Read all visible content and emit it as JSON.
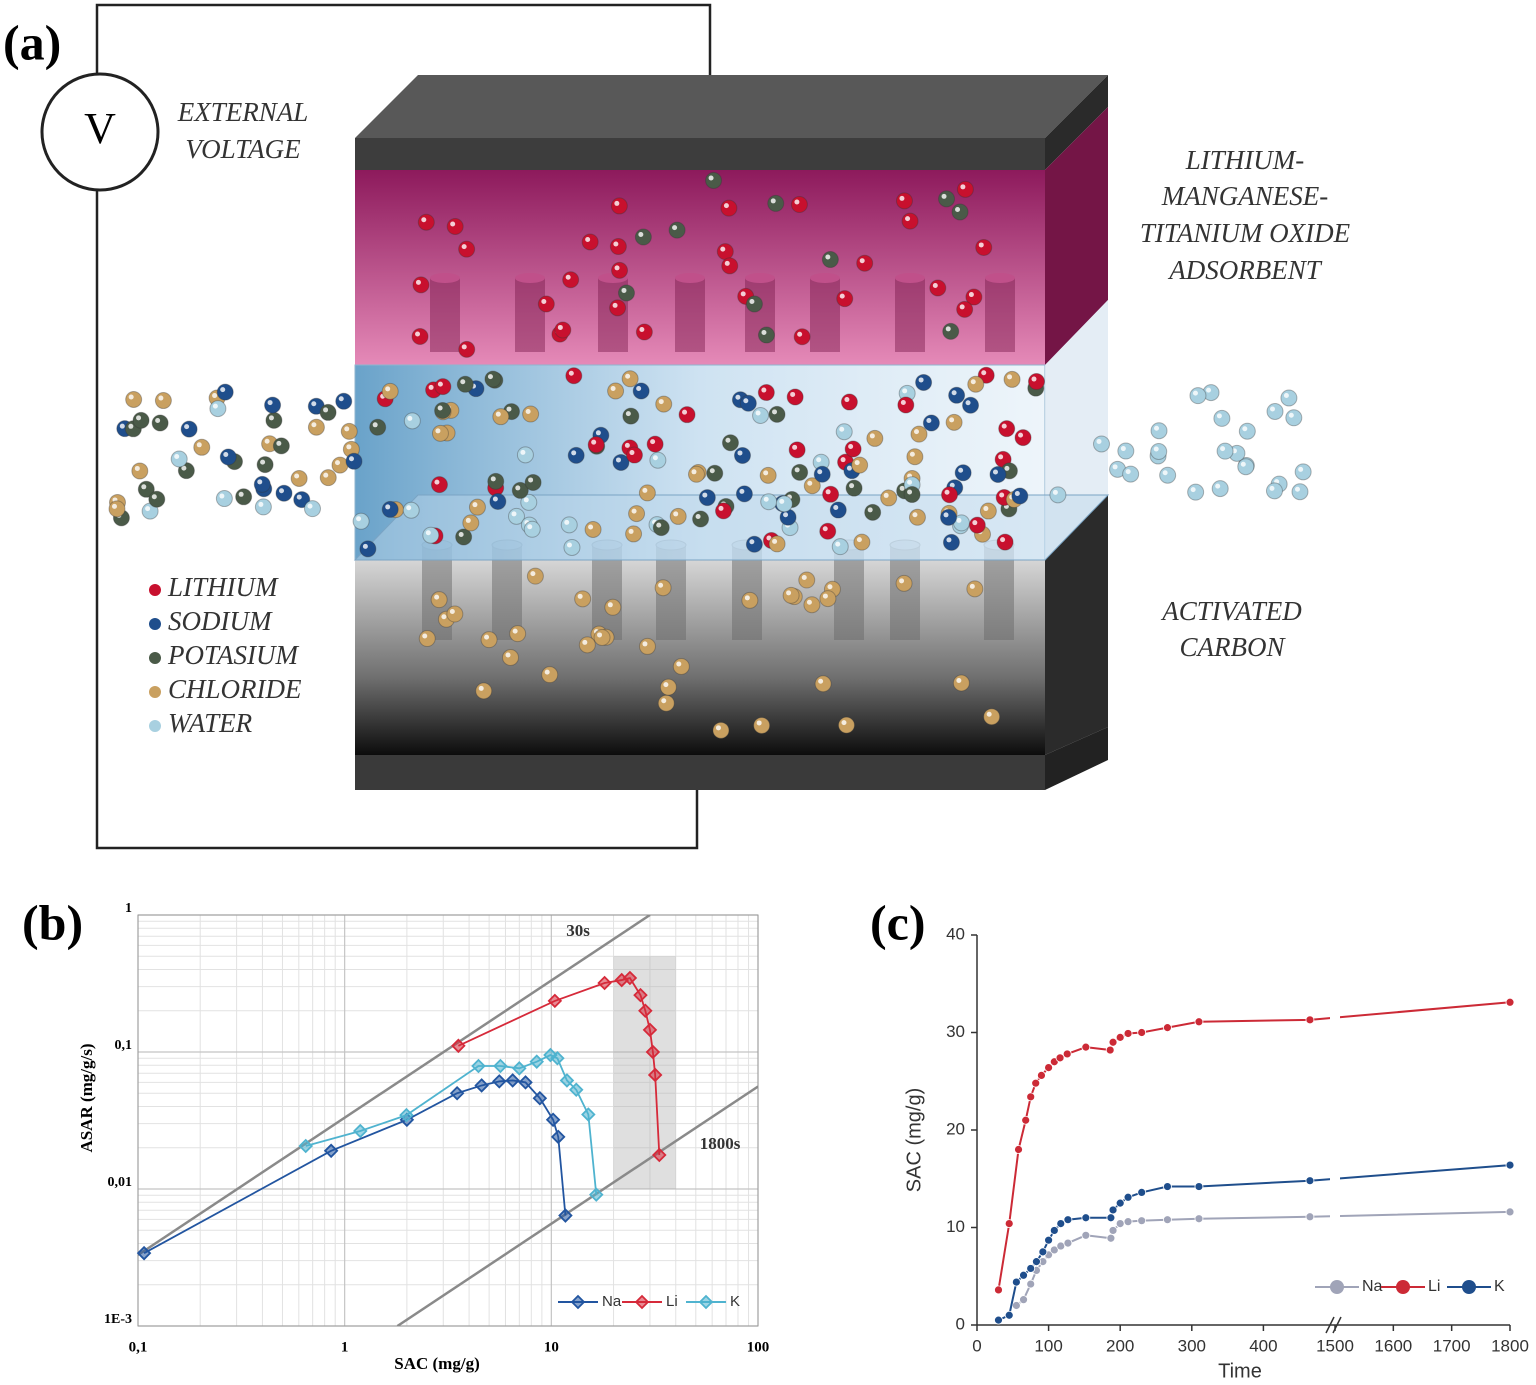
{
  "diagram": {
    "panel_label": "(a)",
    "voltage": "V",
    "voltage_label": [
      "EXTERNAL",
      "VOLTAGE"
    ],
    "top_label": [
      "LITHIUM-",
      "MANGANESE-",
      "TITANIUM OXIDE",
      "ADSORBENT"
    ],
    "bottom_label": [
      "ACTIVATED",
      "CARBON"
    ],
    "legend": [
      {
        "name": "LITHIUM",
        "color": "#c8102e"
      },
      {
        "name": "SODIUM",
        "color": "#1f4e8c"
      },
      {
        "name": "POTASIUM",
        "color": "#4a5a48"
      },
      {
        "name": "CHLORIDE",
        "color": "#c9a060"
      },
      {
        "name": "WATER",
        "color": "#a8d0e0"
      }
    ]
  },
  "chart_data": [
    {
      "type": "line",
      "panel_label": "(b)",
      "x_label": "SAC (mg/g)",
      "y_label": "ASAR (mg/g/s)",
      "x_log": true,
      "y_log": true,
      "grid": true,
      "minor_grid": true,
      "xlim": [
        0.1,
        100
      ],
      "ylim": [
        0.001,
        1
      ],
      "xticks": [
        {
          "value": 0.1,
          "label": "0,1"
        },
        1,
        10,
        100
      ],
      "yticks": [
        {
          "value": 0.001,
          "label": "1E-3"
        },
        {
          "value": 0.01,
          "label": "0,01"
        },
        {
          "value": 0.1,
          "label": "0,1"
        },
        1
      ],
      "reference_lines": [
        {
          "label": "30s",
          "x": [
            0.1,
            30
          ],
          "y": [
            0.0033,
            1
          ]
        },
        {
          "label": "1800s",
          "x": [
            1.8,
            100
          ],
          "y": [
            0.001,
            0.056
          ]
        }
      ],
      "shaded_region": {
        "x": [
          20,
          40
        ],
        "y": [
          0.01,
          0.5
        ]
      },
      "legend": "lower right",
      "series": [
        {
          "name": "Na",
          "color": "#2255a0",
          "x": [
            0.107,
            0.86,
            2.0,
            3.5,
            4.6,
            5.6,
            6.5,
            7.5,
            8.8,
            10.2,
            10.8,
            11.7
          ],
          "values": [
            0.0034,
            0.019,
            0.032,
            0.05,
            0.057,
            0.061,
            0.062,
            0.06,
            0.046,
            0.032,
            0.024,
            0.0064
          ]
        },
        {
          "name": "Li",
          "color": "#d62a3a",
          "x": [
            3.55,
            10.4,
            18.1,
            21.9,
            24,
            27,
            28.5,
            30,
            31,
            31.8,
            33.3
          ],
          "values": [
            0.111,
            0.236,
            0.319,
            0.335,
            0.347,
            0.26,
            0.2,
            0.145,
            0.1,
            0.068,
            0.0177
          ]
        },
        {
          "name": "K",
          "color": "#4fb3cf",
          "x": [
            0.648,
            1.19,
            1.99,
            4.44,
            5.67,
            7,
            8.5,
            9.9,
            10.7,
            11.9,
            13.2,
            15.1,
            16.5
          ],
          "values": [
            0.0206,
            0.0265,
            0.0346,
            0.079,
            0.079,
            0.076,
            0.085,
            0.095,
            0.09,
            0.062,
            0.053,
            0.035,
            0.0091
          ]
        }
      ]
    },
    {
      "type": "line",
      "panel_label": "(c)",
      "x_label": "Time",
      "y_label": "SAC (mg/g)",
      "xlim": [
        0,
        1800
      ],
      "x_break": [
        500,
        1500
      ],
      "ylim": [
        0,
        40
      ],
      "xticks": [
        0,
        100,
        200,
        300,
        400,
        1500,
        1600,
        1700,
        1800
      ],
      "yticks": [
        0,
        10,
        20,
        30,
        40
      ],
      "legend": "lower right",
      "series": [
        {
          "name": "Na",
          "color": "#a0a4b8",
          "x": [
            55,
            65,
            75,
            83,
            92,
            100,
            108,
            117,
            127,
            152,
            187,
            190,
            200,
            211,
            230,
            266,
            310,
            465,
            1800
          ],
          "values": [
            2,
            2.6,
            4.2,
            5.6,
            6.5,
            7.2,
            7.7,
            8.1,
            8.4,
            9.2,
            8.9,
            9.7,
            10.4,
            10.6,
            10.7,
            10.8,
            10.9,
            11.1,
            11.6
          ]
        },
        {
          "name": "Li",
          "color": "#cc2a36",
          "x": [
            30,
            45,
            58,
            68,
            75,
            82,
            90,
            100,
            108,
            116,
            126,
            152,
            186,
            190,
            200,
            211,
            230,
            266,
            310,
            465,
            1800
          ],
          "values": [
            3.6,
            10.4,
            18,
            21,
            23.4,
            24.8,
            25.6,
            26.4,
            27,
            27.4,
            27.8,
            28.5,
            28.2,
            29,
            29.5,
            29.9,
            30,
            30.5,
            31.1,
            31.3,
            33.1
          ]
        },
        {
          "name": "K",
          "color": "#1f4e8c",
          "x": [
            30,
            45,
            55,
            65,
            75,
            83,
            92,
            100,
            108,
            117,
            127,
            152,
            187,
            190,
            200,
            211,
            230,
            266,
            310,
            465,
            1800
          ],
          "values": [
            0.5,
            1.0,
            4.4,
            5.1,
            5.8,
            6.5,
            7.5,
            8.7,
            9.7,
            10.4,
            10.8,
            11,
            11,
            11.8,
            12.5,
            13.1,
            13.6,
            14.2,
            14.2,
            14.8,
            16.4
          ]
        }
      ]
    }
  ]
}
